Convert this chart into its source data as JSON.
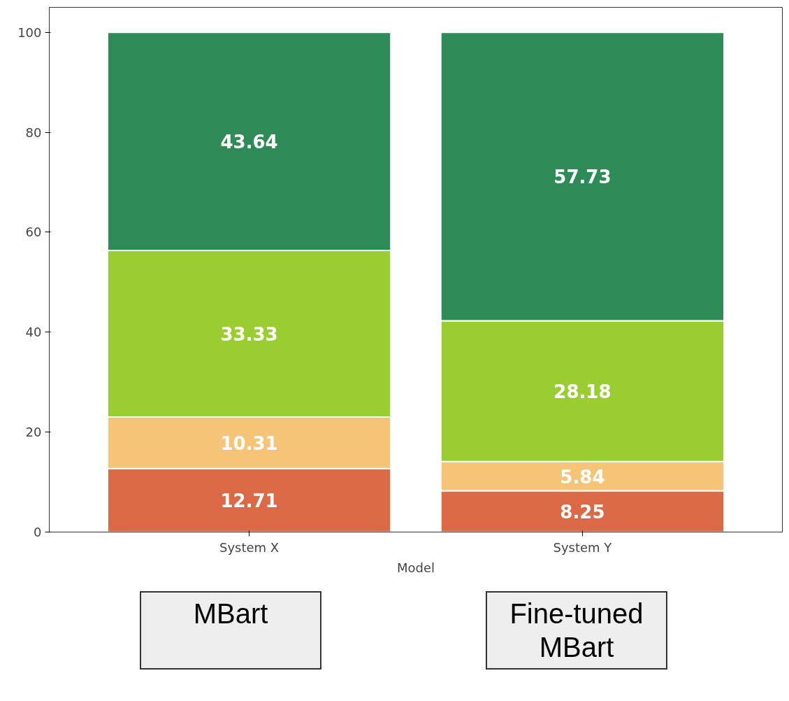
{
  "chart_data": {
    "type": "bar",
    "stacked": true,
    "categories": [
      "System X",
      "System Y"
    ],
    "xlabel": "Model",
    "series": [
      {
        "color": "#dc6946",
        "values": [
          12.71,
          8.25
        ]
      },
      {
        "color": "#f5c477",
        "values": [
          10.31,
          5.84
        ]
      },
      {
        "color": "#9acd32",
        "values": [
          33.33,
          28.18
        ]
      },
      {
        "color": "#2e8b57",
        "values": [
          43.64,
          57.73
        ]
      }
    ],
    "data_labels": true,
    "ylim": [
      0,
      105
    ],
    "yticks": [
      0,
      20,
      40,
      60,
      80,
      100
    ],
    "grid": false,
    "annotations": [
      "MBart",
      "Fine-tuned MBart"
    ]
  }
}
